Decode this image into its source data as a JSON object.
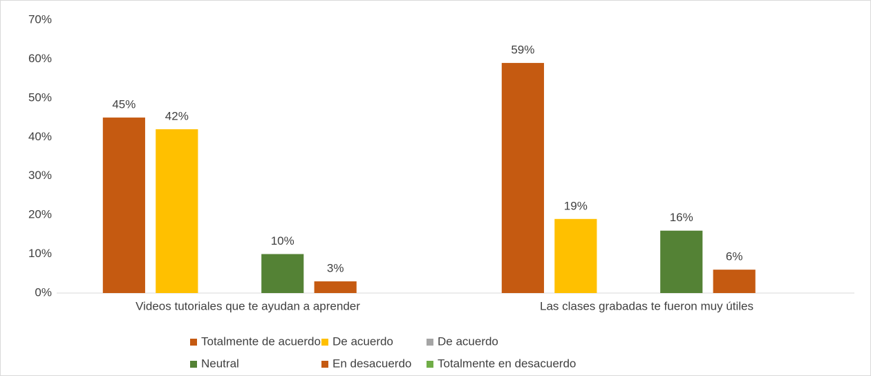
{
  "chart_data": {
    "type": "bar",
    "categories": [
      "Videos tutoriales que te ayudan a aprender",
      "Las clases grabadas te fueron muy útiles"
    ],
    "series": [
      {
        "name": "Totalmente de acuerdo",
        "color": "#c55a11",
        "values": [
          45,
          59
        ],
        "value_labels": [
          "45%",
          "59%"
        ]
      },
      {
        "name": "De acuerdo",
        "color": "#ffc000",
        "values": [
          42,
          19
        ],
        "value_labels": [
          "42%",
          "19%"
        ]
      },
      {
        "name": "De acuerdo",
        "color": "#a5a5a5",
        "values": [
          null,
          null
        ],
        "value_labels": [
          null,
          null
        ]
      },
      {
        "name": "Neutral",
        "color": "#548235",
        "values": [
          10,
          16
        ],
        "value_labels": [
          "10%",
          "16%"
        ]
      },
      {
        "name": "En desacuerdo",
        "color": "#c55a11",
        "values": [
          3,
          6
        ],
        "value_labels": [
          "3%",
          "6%"
        ]
      },
      {
        "name": "Totalmente en desacuerdo",
        "color": "#70ad47",
        "values": [
          null,
          null
        ],
        "value_labels": [
          null,
          null
        ]
      }
    ],
    "ylim": [
      0,
      70
    ],
    "yticks": [
      {
        "value": 0,
        "label": "0%"
      },
      {
        "value": 10,
        "label": "10%"
      },
      {
        "value": 20,
        "label": "20%"
      },
      {
        "value": 30,
        "label": "30%"
      },
      {
        "value": 40,
        "label": "40%"
      },
      {
        "value": 50,
        "label": "50%"
      },
      {
        "value": 60,
        "label": "60%"
      },
      {
        "value": 70,
        "label": "70%"
      }
    ],
    "legend": "bottom"
  }
}
